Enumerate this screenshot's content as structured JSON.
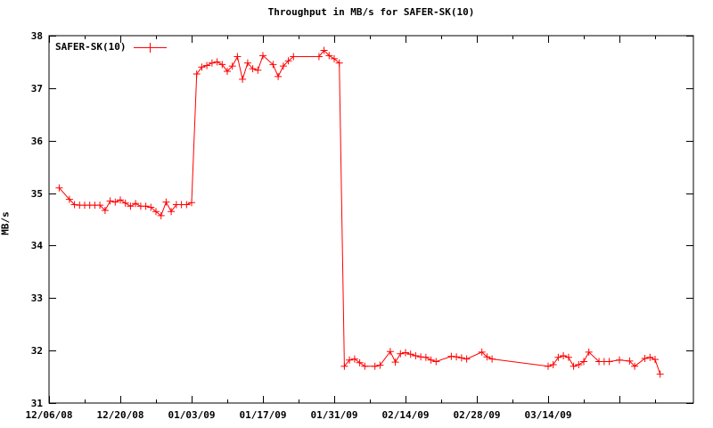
{
  "chart_data": {
    "type": "line",
    "title": "Throughput in MB/s for SAFER-SK(10)",
    "xlabel": "",
    "ylabel": "MB/s",
    "ylim": [
      31,
      38
    ],
    "grid": false,
    "legend_position": "top-left",
    "axis_color": "#000000",
    "background_color": "#ffffff",
    "x_start": "12/06/08",
    "x_major_tick_days": 14,
    "x_minor_tick_days": 7,
    "x_total_days": 126.5,
    "x_tick_labels": [
      "12/06/08",
      "12/20/08",
      "01/03/09",
      "01/17/09",
      "01/31/09",
      "02/14/09",
      "02/28/09",
      "03/14/09"
    ],
    "y_tick_labels": [
      "31",
      "32",
      "33",
      "34",
      "35",
      "36",
      "37",
      "38"
    ],
    "series": [
      {
        "name": "SAFER-SK(10)",
        "color": "#ff0000",
        "marker": "plus",
        "points": [
          [
            "12/08/08",
            35.1
          ],
          [
            "12/10/08",
            34.88
          ],
          [
            "12/11/08",
            34.78
          ],
          [
            "12/12/08",
            34.77
          ],
          [
            "12/13/08",
            34.77
          ],
          [
            "12/14/08",
            34.77
          ],
          [
            "12/15/08",
            34.77
          ],
          [
            "12/16/08",
            34.77
          ],
          [
            "12/17/08",
            34.67
          ],
          [
            "12/18/08",
            34.85
          ],
          [
            "12/19/08",
            34.83
          ],
          [
            "12/20/08",
            34.87
          ],
          [
            "12/21/08",
            34.81
          ],
          [
            "12/22/08",
            34.75
          ],
          [
            "12/23/08",
            34.8
          ],
          [
            "12/24/08",
            34.75
          ],
          [
            "12/25/08",
            34.75
          ],
          [
            "12/26/08",
            34.73
          ],
          [
            "12/27/08",
            34.65
          ],
          [
            "12/28/08",
            34.57
          ],
          [
            "12/29/08",
            34.83
          ],
          [
            "12/30/08",
            34.65
          ],
          [
            "12/31/08",
            34.78
          ],
          [
            "01/01/09",
            34.78
          ],
          [
            "01/02/09",
            34.78
          ],
          [
            "01/03/09",
            34.82
          ],
          [
            "01/04/09",
            37.27
          ],
          [
            "01/05/09",
            37.4
          ],
          [
            "01/06/09",
            37.43
          ],
          [
            "01/07/09",
            37.48
          ],
          [
            "01/08/09",
            37.5
          ],
          [
            "01/09/09",
            37.45
          ],
          [
            "01/10/09",
            37.32
          ],
          [
            "01/11/09",
            37.42
          ],
          [
            "01/12/09",
            37.6
          ],
          [
            "01/13/09",
            37.17
          ],
          [
            "01/14/09",
            37.48
          ],
          [
            "01/15/09",
            37.37
          ],
          [
            "01/16/09",
            37.34
          ],
          [
            "01/17/09",
            37.62
          ],
          [
            "01/19/09",
            37.45
          ],
          [
            "01/20/09",
            37.22
          ],
          [
            "01/21/09",
            37.42
          ],
          [
            "01/22/09",
            37.52
          ],
          [
            "01/23/09",
            37.6
          ],
          [
            "01/28/09",
            37.6
          ],
          [
            "01/29/09",
            37.72
          ],
          [
            "01/30/09",
            37.62
          ],
          [
            "01/31/09",
            37.56
          ],
          [
            "02/01/09",
            37.48
          ],
          [
            "02/02/09",
            31.7
          ],
          [
            "02/03/09",
            31.82
          ],
          [
            "02/04/09",
            31.84
          ],
          [
            "02/05/09",
            31.77
          ],
          [
            "02/06/09",
            31.7
          ],
          [
            "02/08/09",
            31.7
          ],
          [
            "02/09/09",
            31.72
          ],
          [
            "02/11/09",
            31.98
          ],
          [
            "02/12/09",
            31.78
          ],
          [
            "02/13/09",
            31.94
          ],
          [
            "02/14/09",
            31.96
          ],
          [
            "02/15/09",
            31.93
          ],
          [
            "02/16/09",
            31.9
          ],
          [
            "02/17/09",
            31.88
          ],
          [
            "02/18/09",
            31.87
          ],
          [
            "02/19/09",
            31.82
          ],
          [
            "02/20/09",
            31.79
          ],
          [
            "02/23/09",
            31.89
          ],
          [
            "02/24/09",
            31.88
          ],
          [
            "02/25/09",
            31.86
          ],
          [
            "02/26/09",
            31.84
          ],
          [
            "03/01/09",
            31.97
          ],
          [
            "03/02/09",
            31.88
          ],
          [
            "03/03/09",
            31.84
          ],
          [
            "03/14/09",
            31.7
          ],
          [
            "03/15/09",
            31.73
          ],
          [
            "03/16/09",
            31.87
          ],
          [
            "03/17/09",
            31.9
          ],
          [
            "03/18/09",
            31.87
          ],
          [
            "03/19/09",
            31.7
          ],
          [
            "03/20/09",
            31.73
          ],
          [
            "03/21/09",
            31.79
          ],
          [
            "03/22/09",
            31.97
          ],
          [
            "03/24/09",
            31.79
          ],
          [
            "03/25/09",
            31.79
          ],
          [
            "03/26/09",
            31.79
          ],
          [
            "03/28/09",
            31.82
          ],
          [
            "03/30/09",
            31.8
          ],
          [
            "03/31/09",
            31.7
          ],
          [
            "04/02/09",
            31.85
          ],
          [
            "04/03/09",
            31.87
          ],
          [
            "04/04/09",
            31.83
          ],
          [
            "04/05/09",
            31.55
          ]
        ]
      }
    ]
  }
}
